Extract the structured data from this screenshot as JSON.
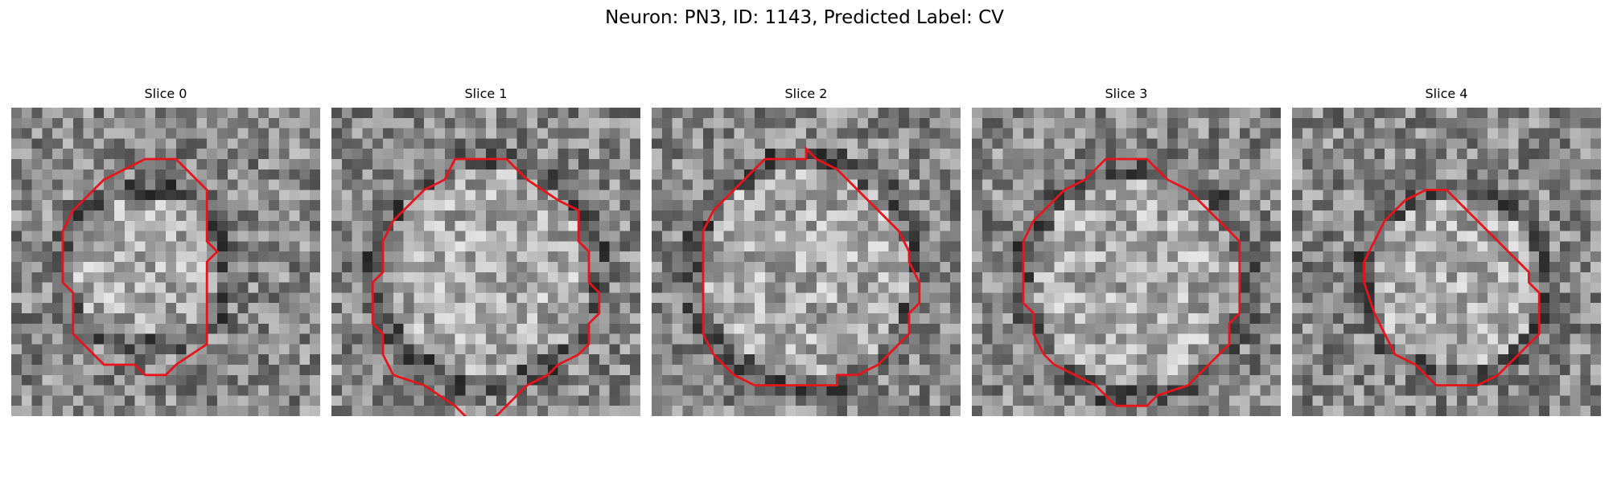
{
  "figure": {
    "title": "Neuron: PN3, ID: 1143, Predicted Label: CV"
  },
  "contour_color": "#e8141b",
  "panels": [
    {
      "title": "Slice 0"
    },
    {
      "title": "Slice 1"
    },
    {
      "title": "Slice 2"
    },
    {
      "title": "Slice 3"
    },
    {
      "title": "Slice 4"
    }
  ]
}
